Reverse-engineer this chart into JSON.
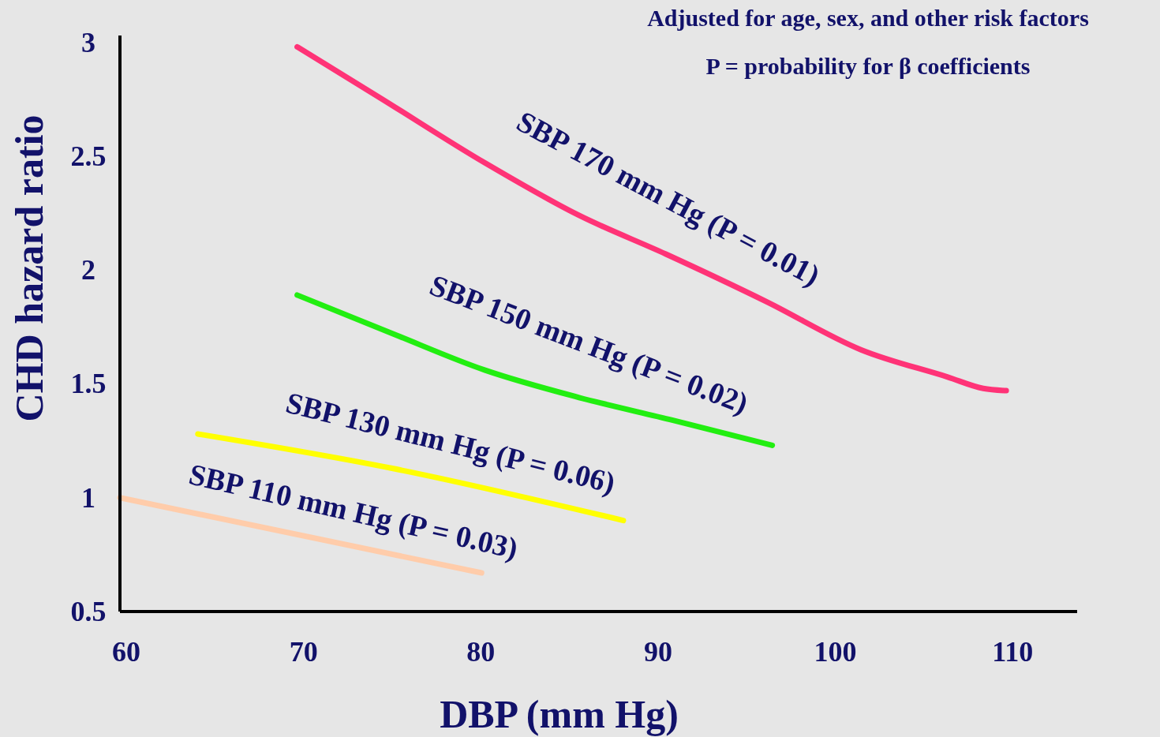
{
  "chart_data": {
    "type": "line",
    "xlabel": "DBP (mm Hg)",
    "ylabel": "CHD hazard ratio",
    "xlim": [
      60,
      114
    ],
    "ylim": [
      0.5,
      3.03
    ],
    "xticks": [
      60,
      70,
      80,
      90,
      100,
      110
    ],
    "yticks": [
      0.5,
      1,
      1.5,
      2,
      2.5,
      3
    ],
    "grid": false,
    "marker": "none",
    "series": [
      {
        "name": "SBP 170 mm Hg (P = 0.01)",
        "color": "#ff3377",
        "x": [
          70,
          74.6,
          80.6,
          85.9,
          90.8,
          96.5,
          101.8,
          106.7,
          108.7,
          110
        ],
        "values": [
          2.98,
          2.76,
          2.47,
          2.24,
          2.07,
          1.86,
          1.65,
          1.53,
          1.48,
          1.47
        ]
      },
      {
        "name": "SBP 150 mm Hg (P = 0.02)",
        "color": "#22ee11",
        "x": [
          70,
          75.4,
          80.6,
          85.9,
          91.2,
          96.8
        ],
        "values": [
          1.89,
          1.72,
          1.56,
          1.44,
          1.34,
          1.23
        ]
      },
      {
        "name": "SBP 130 mm Hg (P = 0.06)",
        "color": "#ffff00",
        "x": [
          64.4,
          75.3,
          88.4
        ],
        "values": [
          1.28,
          1.13,
          0.9
        ]
      },
      {
        "name": "SBP 110 mm Hg (P = 0.03)",
        "color": "#ffccaa",
        "x": [
          60,
          80.4
        ],
        "values": [
          1.0,
          0.67
        ]
      }
    ],
    "annotations": [
      "Adjusted for age, sex, and other risk factors",
      "P = probability for β coefficients"
    ]
  }
}
